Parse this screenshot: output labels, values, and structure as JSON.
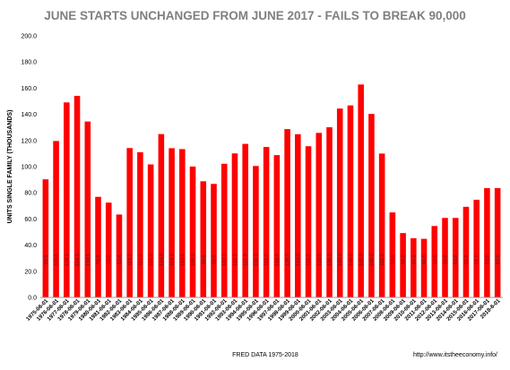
{
  "chart_data": {
    "type": "bar",
    "title": "JUNE STARTS UNCHANGED FROM JUNE 2017 - FAILS TO BREAK 90,000",
    "ylabel": "UNITS SINGLE FAMILY (THOUSANDS)",
    "xlabel": "",
    "ylim": [
      0,
      200
    ],
    "yticks": [
      "0.0",
      "20.0",
      "40.0",
      "60.0",
      "80.0",
      "100.0",
      "120.0",
      "140.0",
      "160.0",
      "180.0",
      "200.0"
    ],
    "grid": false,
    "legend": "none",
    "bar_color": "#ff0000",
    "footer_left": "FRED  DATA 1975-2018",
    "footer_right": "http://www.itstheeconomy.info/",
    "categories": [
      "1975-06-01",
      "1976-06-01",
      "1977-06-01",
      "1978-06-01",
      "1979-06-01",
      "1980-06-01",
      "1981-06-01",
      "1982-06-01",
      "1983-06-01",
      "1984-06-01",
      "1985-06-01",
      "1986-06-01",
      "1987-06-01",
      "1988-06-01",
      "1989-06-01",
      "1990-06-01",
      "1991-06-01",
      "1992-06-01",
      "1993-06-01",
      "1994-06-01",
      "1995-06-01",
      "1996-06-01",
      "1997-06-01",
      "1998-06-01",
      "1999-06-01",
      "2000-06-01",
      "2001-06-01",
      "2002-06-01",
      "2003-06-01",
      "2004-06-01",
      "2005-06-01",
      "2006-06-01",
      "2007-06-01",
      "2008-06-01",
      "2009-06-01",
      "2010-06-01",
      "2011-06-01",
      "2012-06-01",
      "2013-06-01",
      "2014-06-01",
      "2015-06-01",
      "2016-06-01",
      "2017-06-01",
      "2018-6-01"
    ],
    "values": [
      90.3,
      119.6,
      149.1,
      154.1,
      134.5,
      76.9,
      72.5,
      63.4,
      114.2,
      111.0,
      101.7,
      124.9,
      114.1,
      113.4,
      100.1,
      88.8,
      86.8,
      102.2,
      110.1,
      117.4,
      100.5,
      115.0,
      108.8,
      128.7,
      124.8,
      115.6,
      125.8,
      130.1,
      144.4,
      146.8,
      162.8,
      140.3,
      110.0,
      65.0,
      49.2,
      45.3,
      44.8,
      54.6,
      60.8,
      60.8,
      69.3,
      74.7,
      83.6,
      83.6
    ],
    "data_labels": [
      "90.3",
      "119.6",
      "149.1",
      "154.1",
      "134.5",
      "76.9",
      "72.5",
      "63.4",
      "114.2",
      "111.0",
      "101.7",
      "124.9",
      "114.1",
      "113.4",
      "100.1",
      "88.8",
      "86.8",
      "102.2",
      "110.1",
      "117.4",
      "100.5",
      "115.0",
      "108.8",
      "128.7",
      "124.8",
      "115.6",
      "125.8",
      "130.1",
      "144.4",
      "146.8",
      "162.8",
      "140.3",
      "110.0",
      "65.0",
      "49.2",
      "45.3",
      "44.8",
      "54.6",
      "60.8",
      "60.8",
      "69.3",
      "74.7",
      "83.6",
      "83.6"
    ]
  }
}
